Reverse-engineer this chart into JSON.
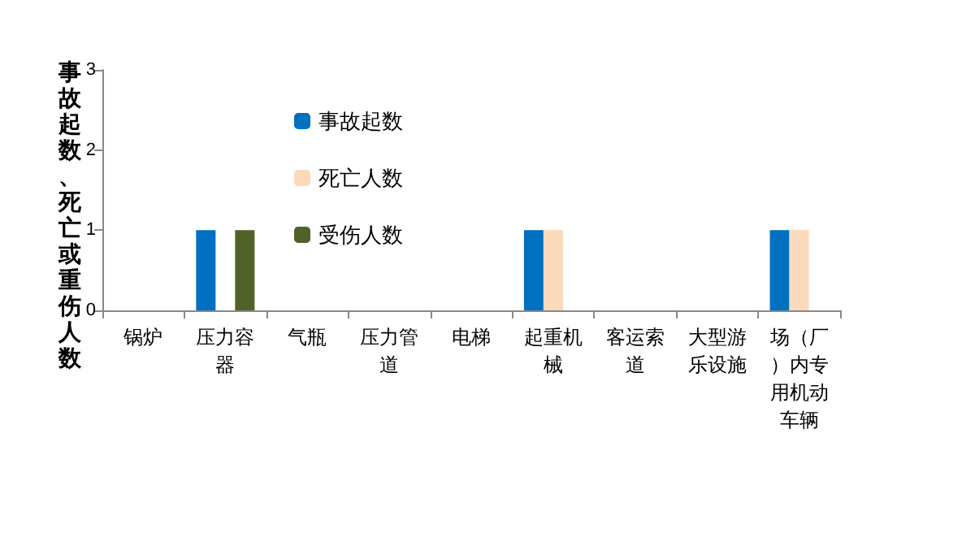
{
  "chart_data": {
    "type": "bar",
    "ylabel": "事故起数、死亡或重伤人数",
    "categories": [
      "锅炉",
      "压力容器",
      "气瓶",
      "压力管道",
      "电梯",
      "起重机械",
      "客运索道",
      "大型游乐设施",
      "场（厂）内专用机动车辆"
    ],
    "series": [
      {
        "name": "事故起数",
        "color": "#0070c0",
        "values": [
          0,
          1,
          0,
          0,
          0,
          1,
          0,
          0,
          1
        ]
      },
      {
        "name": "死亡人数",
        "color": "#fad9bd",
        "values": [
          0,
          0,
          0,
          0,
          0,
          1,
          0,
          0,
          1
        ]
      },
      {
        "name": "受伤人数",
        "color": "#4f6228",
        "values": [
          0,
          1,
          0,
          0,
          0,
          0,
          0,
          0,
          0
        ]
      }
    ],
    "ylim": [
      0,
      3
    ],
    "yticks": [
      0,
      1,
      2,
      3
    ],
    "grid": false,
    "legend": "top left"
  }
}
